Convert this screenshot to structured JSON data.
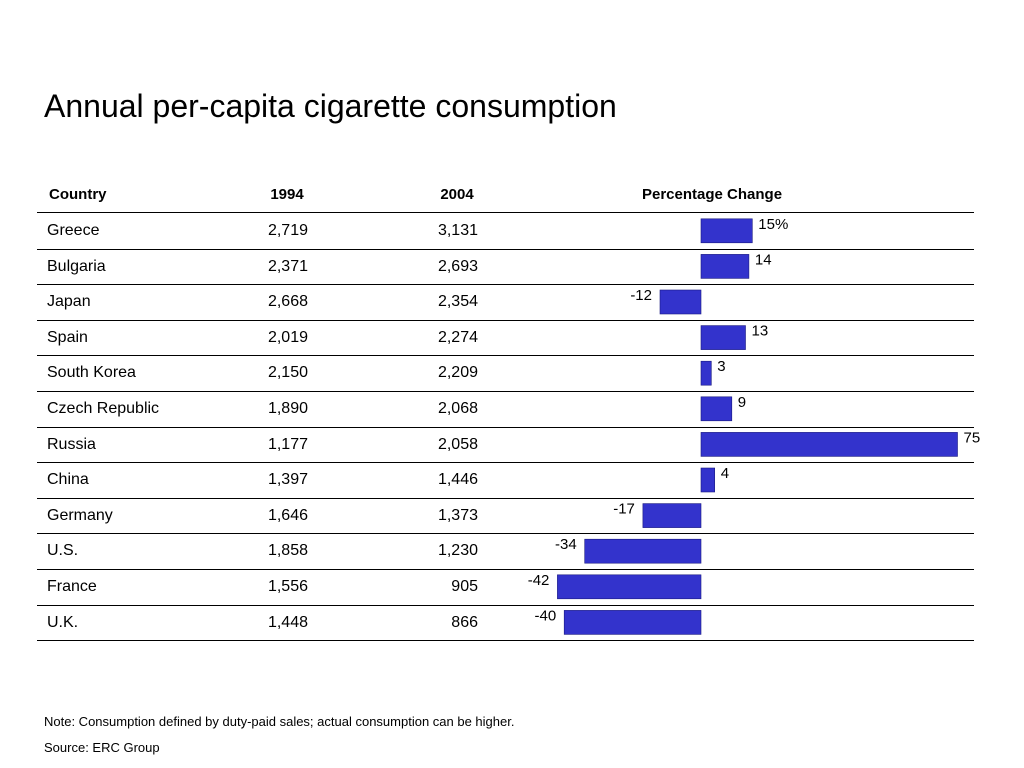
{
  "title": "Annual per-capita cigarette consumption",
  "headers": {
    "country": "Country",
    "year1": "1994",
    "year2": "2004",
    "change": "Percentage Change"
  },
  "colors": {
    "bar": "#3333cc",
    "line": "#000000"
  },
  "chart_data": {
    "type": "bar",
    "orientation": "horizontal",
    "categories": [
      "Greece",
      "Bulgaria",
      "Japan",
      "Spain",
      "South Korea",
      "Czech Republic",
      "Russia",
      "China",
      "Germany",
      "U.S.",
      "France",
      "U.K."
    ],
    "series": [
      {
        "values": [
          15,
          14,
          -12,
          13,
          3,
          9,
          75,
          4,
          -17,
          -34,
          -42,
          -40
        ]
      }
    ],
    "value_labels": [
      "15%",
      "14",
      "-12",
      "13",
      "3",
      "9",
      "75",
      "4",
      "-17",
      "-34",
      "-42",
      "-40"
    ],
    "title": "Percentage Change",
    "xlabel": "",
    "ylabel": ""
  },
  "rows": [
    {
      "country": "Greece",
      "y1994": "2,719",
      "y2004": "3,131"
    },
    {
      "country": "Bulgaria",
      "y1994": "2,371",
      "y2004": "2,693"
    },
    {
      "country": "Japan",
      "y1994": "2,668",
      "y2004": "2,354"
    },
    {
      "country": "Spain",
      "y1994": "2,019",
      "y2004": "2,274"
    },
    {
      "country": "South Korea",
      "y1994": "2,150",
      "y2004": "2,209"
    },
    {
      "country": "Czech Republic",
      "y1994": "1,890",
      "y2004": "2,068"
    },
    {
      "country": "Russia",
      "y1994": "1,177",
      "y2004": "2,058"
    },
    {
      "country": "China",
      "y1994": "1,397",
      "y2004": "1,446"
    },
    {
      "country": "Germany",
      "y1994": "1,646",
      "y2004": "1,373"
    },
    {
      "country": "U.S.",
      "y1994": "1,858",
      "y2004": "1,230"
    },
    {
      "country": "France",
      "y1994": "1,556",
      "y2004": "905"
    },
    {
      "country": "U.K.",
      "y1994": "1,448",
      "y2004": "866"
    }
  ],
  "notes": {
    "note": "Note: Consumption defined by duty-paid sales; actual consumption can be higher.",
    "source": "Source: ERC Group"
  }
}
